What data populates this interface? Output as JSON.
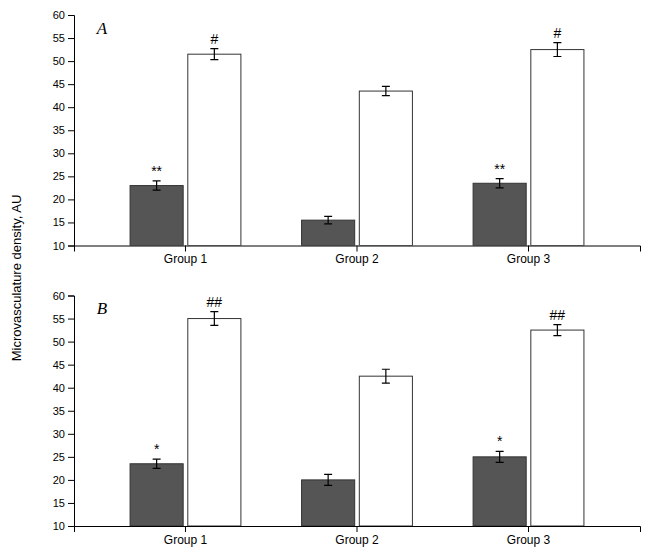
{
  "chart_data": [
    {
      "type": "bar",
      "title": "A",
      "ylabel": "Microvasculature density, AU",
      "categories": [
        "Group 1",
        "Group 2",
        "Group 3"
      ],
      "series": [
        {
          "color": "#555555",
          "values": [
            23.0,
            15.5,
            23.5
          ],
          "errors": [
            1.0,
            0.8,
            1.0
          ],
          "annotations": [
            "**",
            null,
            "**"
          ]
        },
        {
          "color": "#ffffff",
          "values": [
            51.5,
            43.5,
            52.5
          ],
          "errors": [
            1.2,
            1.0,
            1.5
          ],
          "annotations": [
            "#",
            null,
            "#"
          ]
        }
      ],
      "ylim": [
        10,
        60
      ],
      "yticks": [
        10,
        15,
        20,
        25,
        30,
        35,
        40,
        45,
        50,
        55,
        60
      ],
      "grid": false
    },
    {
      "type": "bar",
      "title": "B",
      "categories": [
        "Group 1",
        "Group 2",
        "Group 3"
      ],
      "series": [
        {
          "color": "#555555",
          "values": [
            23.5,
            20.0,
            25.0
          ],
          "errors": [
            1.0,
            1.2,
            1.2
          ],
          "annotations": [
            "*",
            null,
            "*"
          ]
        },
        {
          "color": "#ffffff",
          "values": [
            55.0,
            42.5,
            52.5
          ],
          "errors": [
            1.5,
            1.5,
            1.2
          ],
          "annotations": [
            "##",
            null,
            "##"
          ]
        }
      ],
      "ylim": [
        10,
        60
      ],
      "yticks": [
        10,
        15,
        20,
        25,
        30,
        35,
        40,
        45,
        50,
        55,
        60
      ],
      "grid": false
    }
  ]
}
